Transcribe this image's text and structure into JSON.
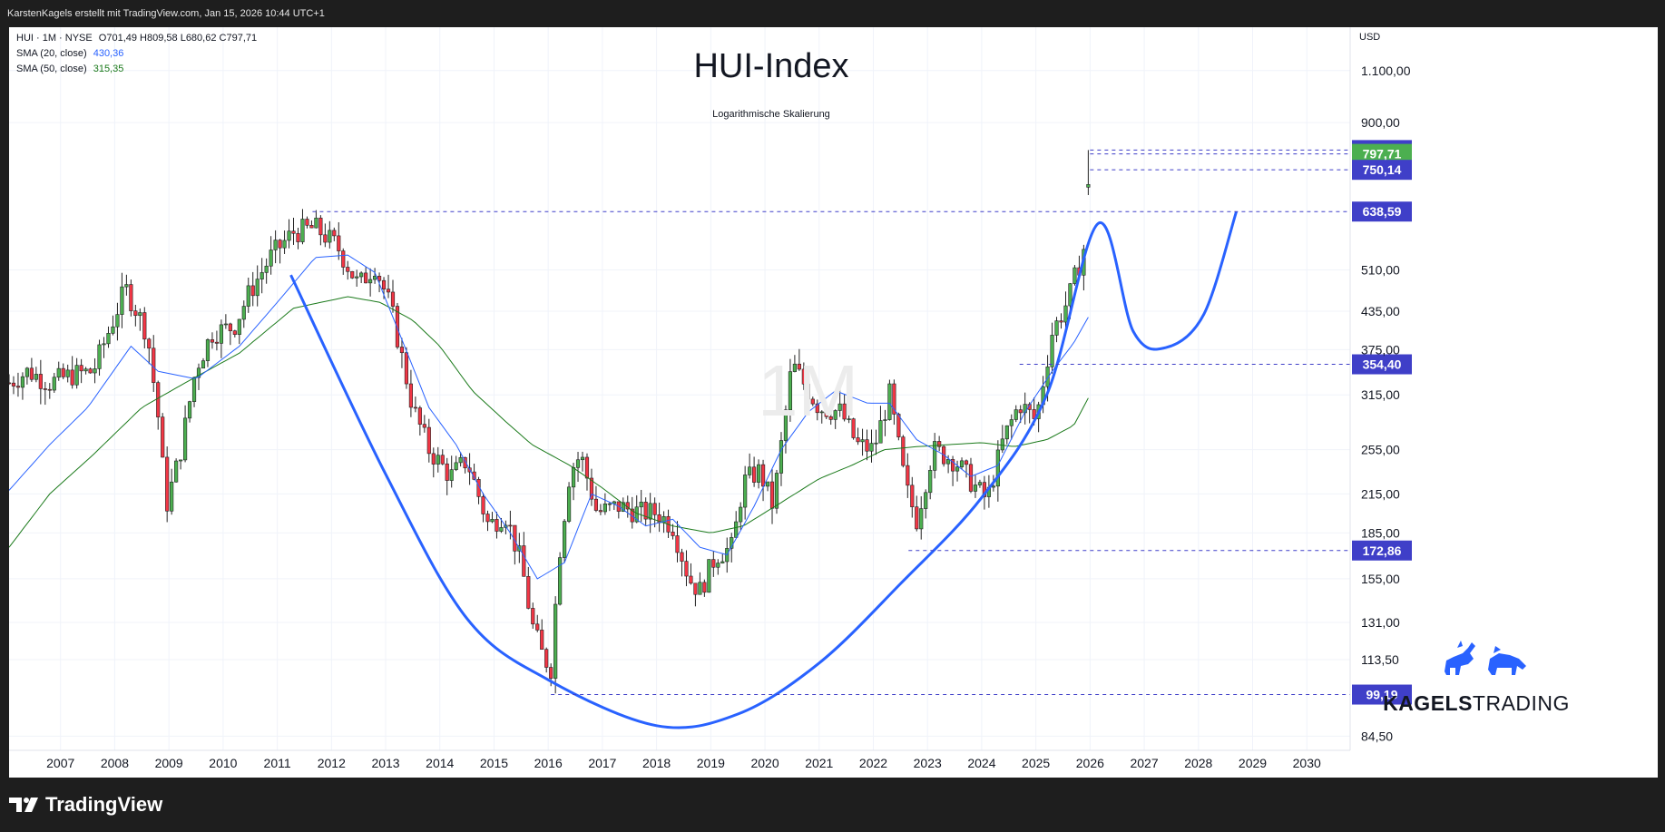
{
  "header": {
    "credit": "KarstenKagels erstellt mit TradingView.com, Jan 15, 2026 10:44 UTC+1"
  },
  "legend": {
    "symbol": "HUI · 1M · NYSE",
    "ohlc": "O701,49  H809,58  L680,62  C797,71",
    "sma20_label": "SMA (20, close)",
    "sma20_value": "430,36",
    "sma50_label": "SMA (50, close)",
    "sma50_value": "315,35"
  },
  "title": "HUI-Index",
  "subtitle": "Logarithmische Skalierung",
  "watermark": "1M",
  "currency": "USD",
  "logo": {
    "bold": "KAGELS",
    "light": "TRADING"
  },
  "footer": {
    "brand": "TradingView"
  },
  "colors": {
    "up": "#4caf50",
    "down": "#f23645",
    "sma20": "#2962ff",
    "sma50": "#1b7a1b",
    "cup_curve": "#2962ff",
    "level_line": "#3f3fc8",
    "badge": "#3f3fc8",
    "last_badge": "#4caf50"
  },
  "chart_data": {
    "type": "candlestick",
    "interval": "monthly",
    "y_scale": "log",
    "ylim": [
      80,
      1300
    ],
    "xlim": [
      2006.05,
      2030.8
    ],
    "x_tick_labels": [
      "2007",
      "2008",
      "2009",
      "2010",
      "2011",
      "2012",
      "2013",
      "2014",
      "2015",
      "2016",
      "2017",
      "2018",
      "2019",
      "2020",
      "2021",
      "2022",
      "2023",
      "2024",
      "2025",
      "2026",
      "2027",
      "2028",
      "2029",
      "2030"
    ],
    "x_ticks": [
      2007,
      2008,
      2009,
      2010,
      2011,
      2012,
      2013,
      2014,
      2015,
      2016,
      2017,
      2018,
      2019,
      2020,
      2021,
      2022,
      2023,
      2024,
      2025,
      2026,
      2027,
      2028,
      2029,
      2030
    ],
    "y_tick_labels": [
      "1.100,00",
      "900,00",
      "510,00",
      "435,00",
      "375,00",
      "315,00",
      "255,00",
      "215,00",
      "185,00",
      "155,00",
      "131,00",
      "113,50",
      "84,50"
    ],
    "y_ticks": [
      1100,
      900,
      510,
      435,
      375,
      315,
      255,
      215,
      185,
      155,
      131,
      113.5,
      84.5
    ],
    "close_anchors": [
      [
        2006.05,
        330
      ],
      [
        2006.4,
        345
      ],
      [
        2006.8,
        330
      ],
      [
        2007.2,
        340
      ],
      [
        2007.6,
        345
      ],
      [
        2008.2,
        475
      ],
      [
        2008.6,
        400
      ],
      [
        2008.8,
        290
      ],
      [
        2008.95,
        205
      ],
      [
        2009.2,
        250
      ],
      [
        2009.5,
        350
      ],
      [
        2009.8,
        400
      ],
      [
        2010.2,
        410
      ],
      [
        2010.5,
        470
      ],
      [
        2010.9,
        540
      ],
      [
        2011.3,
        590
      ],
      [
        2011.7,
        600
      ],
      [
        2012.1,
        560
      ],
      [
        2012.5,
        480
      ],
      [
        2012.8,
        520
      ],
      [
        2013.1,
        440
      ],
      [
        2013.5,
        300
      ],
      [
        2013.8,
        255
      ],
      [
        2014.2,
        230
      ],
      [
        2014.5,
        245
      ],
      [
        2014.9,
        190
      ],
      [
        2015.2,
        200
      ],
      [
        2015.5,
        165
      ],
      [
        2015.7,
        130
      ],
      [
        2015.9,
        115
      ],
      [
        2016.05,
        110
      ],
      [
        2016.2,
        170
      ],
      [
        2016.4,
        235
      ],
      [
        2016.6,
        250
      ],
      [
        2016.9,
        200
      ],
      [
        2017.3,
        205
      ],
      [
        2017.7,
        200
      ],
      [
        2018.0,
        200
      ],
      [
        2018.3,
        190
      ],
      [
        2018.6,
        155
      ],
      [
        2018.8,
        148
      ],
      [
        2019.1,
        170
      ],
      [
        2019.4,
        175
      ],
      [
        2019.6,
        225
      ],
      [
        2019.9,
        235
      ],
      [
        2020.15,
        205
      ],
      [
        2020.5,
        355
      ],
      [
        2020.8,
        320
      ],
      [
        2021.0,
        300
      ],
      [
        2021.4,
        295
      ],
      [
        2021.7,
        260
      ],
      [
        2022.0,
        255
      ],
      [
        2022.3,
        315
      ],
      [
        2022.6,
        220
      ],
      [
        2022.8,
        195
      ],
      [
        2023.1,
        255
      ],
      [
        2023.5,
        245
      ],
      [
        2023.9,
        220
      ],
      [
        2024.1,
        210
      ],
      [
        2024.4,
        265
      ],
      [
        2024.7,
        305
      ],
      [
        2025.0,
        285
      ],
      [
        2025.3,
        400
      ],
      [
        2025.6,
        455
      ],
      [
        2025.9,
        560
      ],
      [
        2026.0,
        797.71
      ]
    ],
    "sma20_anchors": [
      [
        2006.05,
        218
      ],
      [
        2006.8,
        260
      ],
      [
        2007.5,
        300
      ],
      [
        2008.3,
        380
      ],
      [
        2008.8,
        345
      ],
      [
        2009.5,
        335
      ],
      [
        2010.3,
        380
      ],
      [
        2011.0,
        450
      ],
      [
        2011.7,
        535
      ],
      [
        2012.3,
        540
      ],
      [
        2012.8,
        505
      ],
      [
        2013.3,
        390
      ],
      [
        2013.8,
        300
      ],
      [
        2014.3,
        260
      ],
      [
        2014.8,
        215
      ],
      [
        2015.3,
        185
      ],
      [
        2015.8,
        155
      ],
      [
        2016.3,
        165
      ],
      [
        2016.8,
        215
      ],
      [
        2017.3,
        205
      ],
      [
        2017.8,
        190
      ],
      [
        2018.3,
        195
      ],
      [
        2018.8,
        175
      ],
      [
        2019.3,
        170
      ],
      [
        2019.8,
        205
      ],
      [
        2020.3,
        255
      ],
      [
        2020.8,
        295
      ],
      [
        2021.3,
        320
      ],
      [
        2021.9,
        305
      ],
      [
        2022.3,
        305
      ],
      [
        2022.8,
        265
      ],
      [
        2023.3,
        250
      ],
      [
        2023.8,
        230
      ],
      [
        2024.3,
        240
      ],
      [
        2024.8,
        295
      ],
      [
        2025.3,
        345
      ],
      [
        2025.7,
        385
      ],
      [
        2026.0,
        430.36
      ]
    ],
    "sma50_anchors": [
      [
        2006.05,
        175
      ],
      [
        2006.8,
        215
      ],
      [
        2007.6,
        250
      ],
      [
        2008.5,
        300
      ],
      [
        2009.3,
        330
      ],
      [
        2010.3,
        370
      ],
      [
        2011.3,
        440
      ],
      [
        2012.3,
        460
      ],
      [
        2012.9,
        450
      ],
      [
        2013.5,
        420
      ],
      [
        2014.0,
        380
      ],
      [
        2014.6,
        320
      ],
      [
        2015.2,
        285
      ],
      [
        2015.7,
        260
      ],
      [
        2016.4,
        240
      ],
      [
        2017.0,
        220
      ],
      [
        2017.6,
        200
      ],
      [
        2018.3,
        190
      ],
      [
        2019.0,
        185
      ],
      [
        2019.6,
        190
      ],
      [
        2020.3,
        208
      ],
      [
        2021.0,
        228
      ],
      [
        2021.6,
        240
      ],
      [
        2022.2,
        255
      ],
      [
        2022.8,
        258
      ],
      [
        2023.4,
        260
      ],
      [
        2024.0,
        262
      ],
      [
        2024.6,
        258
      ],
      [
        2025.2,
        265
      ],
      [
        2025.7,
        280
      ],
      [
        2026.0,
        315.35
      ]
    ],
    "cup_curve": [
      [
        2011.25,
        500
      ],
      [
        2013.0,
        232
      ],
      [
        2014.5,
        133
      ],
      [
        2016.0,
        105
      ],
      [
        2018.0,
        88
      ],
      [
        2019.5,
        92
      ],
      [
        2021.0,
        112
      ],
      [
        2022.5,
        152
      ],
      [
        2024.0,
        212
      ],
      [
        2025.2,
        315
      ],
      [
        2026.15,
        610
      ],
      [
        2026.8,
        402
      ],
      [
        2027.4,
        378
      ],
      [
        2028.1,
        430
      ],
      [
        2028.7,
        638.59
      ]
    ],
    "levels": [
      {
        "label": "809,58",
        "value": 809.58,
        "x_start": 2026.0,
        "last": false
      },
      {
        "label": "797,71",
        "value": 797.71,
        "x_start": 2026.0,
        "last": true
      },
      {
        "label": "750,14",
        "value": 750.14,
        "x_start": 2026.0,
        "last": false
      },
      {
        "label": "638,59",
        "value": 638.59,
        "x_start": 2011.65,
        "last": false
      },
      {
        "label": "354,40",
        "value": 354.4,
        "x_start": 2024.7,
        "last": false
      },
      {
        "label": "172,86",
        "value": 172.86,
        "x_start": 2022.65,
        "last": false
      },
      {
        "label": "99,19",
        "value": 99.19,
        "x_start": 2016.05,
        "last": false
      }
    ]
  }
}
